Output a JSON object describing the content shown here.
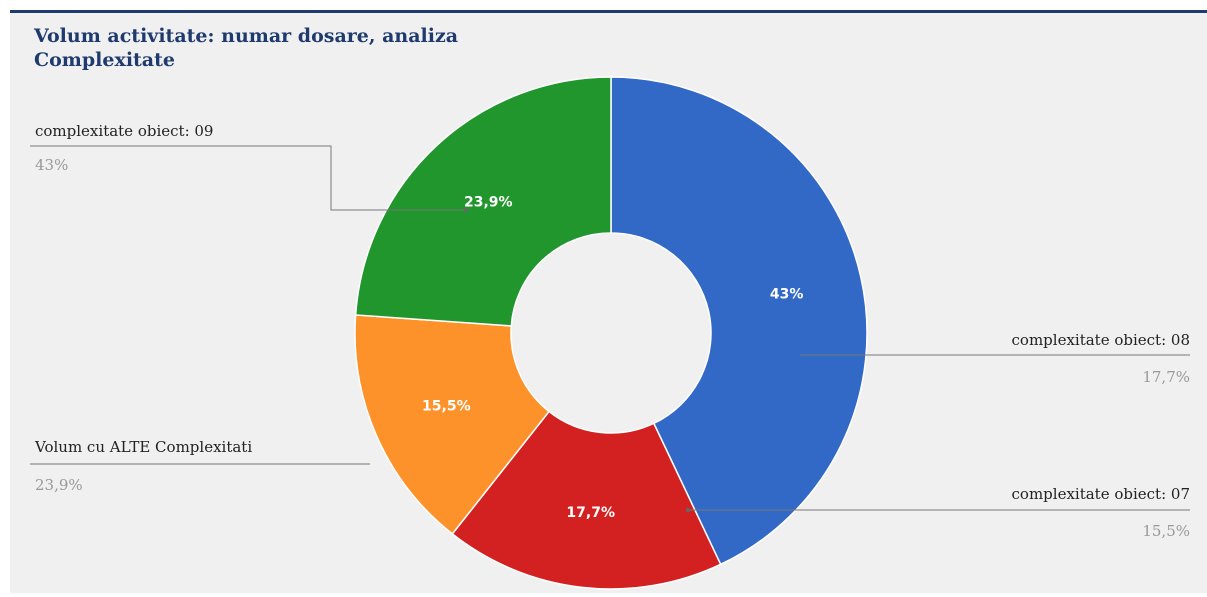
{
  "chart_data": {
    "type": "pie",
    "donut": true,
    "title": "Volum activitate: numar dosare, analiza Complexitate",
    "start_angle_deg": -90,
    "slices": [
      {
        "label": "complexitate obiect: 09",
        "value": 43.0,
        "display": "43%",
        "color": "#3269c6"
      },
      {
        "label": "complexitate obiect: 08",
        "value": 17.7,
        "display": "17,7%",
        "color": "#d32020"
      },
      {
        "label": "complexitate obiect: 07",
        "value": 15.5,
        "display": "15,5%",
        "color": "#fd922a"
      },
      {
        "label": "Volum cu ALTE Complexitati",
        "value": 23.9,
        "display": "23,9%",
        "color": "#21962c"
      }
    ]
  }
}
